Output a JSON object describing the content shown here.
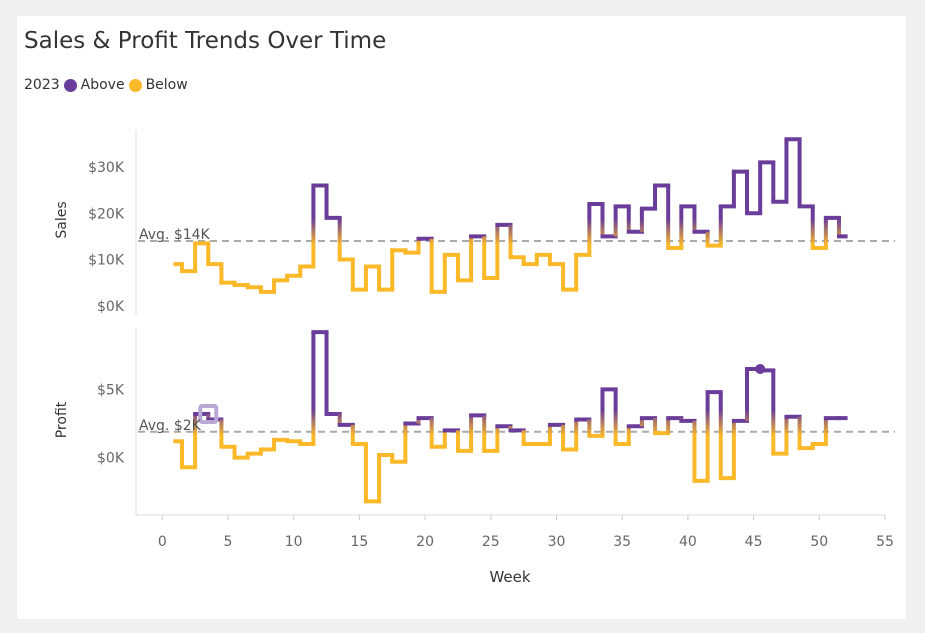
{
  "title": "Sales & Profit Trends Over Time",
  "legend": {
    "year": "2023",
    "items": [
      {
        "label": "Above",
        "color": "#6a3d9a"
      },
      {
        "label": "Below",
        "color": "#fbb829"
      }
    ]
  },
  "colors": {
    "above": "#6a3d9a",
    "below": "#fbb829",
    "avg_line": "#aaaaaa",
    "highlight": "#b9a7d6"
  },
  "chart_data": [
    {
      "type": "line",
      "style": "step",
      "ylabel": "Sales",
      "xlabel": "",
      "yticks": [
        0,
        10000,
        20000,
        30000
      ],
      "ytick_labels": [
        "$0K",
        "$10K",
        "$20K",
        "$30K"
      ],
      "ylim": [
        -2000,
        38000
      ],
      "avg": 14000,
      "avg_label": "Avg. $14K",
      "x": [
        1,
        2,
        3,
        4,
        5,
        6,
        7,
        8,
        9,
        10,
        11,
        12,
        13,
        14,
        15,
        16,
        17,
        18,
        19,
        20,
        21,
        22,
        23,
        24,
        25,
        26,
        27,
        28,
        29,
        30,
        31,
        32,
        33,
        34,
        35,
        36,
        37,
        38,
        39,
        40,
        41,
        42,
        43,
        44,
        45,
        46,
        47,
        48,
        49,
        50,
        51,
        52
      ],
      "values": [
        9000,
        7500,
        13500,
        9000,
        5000,
        4500,
        4000,
        3000,
        5500,
        6500,
        8500,
        26000,
        19000,
        10000,
        3500,
        8500,
        3500,
        12000,
        11500,
        14500,
        3000,
        11000,
        5500,
        15000,
        6000,
        17500,
        10500,
        9000,
        11000,
        9000,
        3500,
        11000,
        22000,
        15000,
        21500,
        16000,
        21000,
        26000,
        12500,
        21500,
        16000,
        13000,
        21500,
        29000,
        20000,
        31000,
        22500,
        36000,
        21500,
        12500,
        19000,
        15000
      ]
    },
    {
      "type": "line",
      "style": "step",
      "ylabel": "Profit",
      "xlabel": "Week",
      "yticks": [
        0,
        5000
      ],
      "ytick_labels": [
        "$0K",
        "$5K"
      ],
      "ylim": [
        -4200,
        9500
      ],
      "avg": 1900,
      "avg_label": "Avg. $2K",
      "x": [
        1,
        2,
        3,
        4,
        5,
        6,
        7,
        8,
        9,
        10,
        11,
        12,
        13,
        14,
        15,
        16,
        17,
        18,
        19,
        20,
        21,
        22,
        23,
        24,
        25,
        26,
        27,
        28,
        29,
        30,
        31,
        32,
        33,
        34,
        35,
        36,
        37,
        38,
        39,
        40,
        41,
        42,
        43,
        44,
        45,
        46,
        47,
        48,
        49,
        50,
        51,
        52
      ],
      "values": [
        1200,
        -700,
        3200,
        2800,
        800,
        0,
        300,
        600,
        1300,
        1200,
        1000,
        9200,
        3200,
        2400,
        1000,
        -3200,
        200,
        -300,
        2500,
        2900,
        800,
        2000,
        500,
        3100,
        500,
        2300,
        2000,
        1000,
        1000,
        2400,
        600,
        2800,
        1600,
        5000,
        1000,
        2300,
        2900,
        1800,
        2900,
        2700,
        -1700,
        4800,
        -1500,
        2700,
        6500,
        6400,
        300,
        3000,
        700,
        1000,
        2900,
        2900
      ],
      "highlight_marker_week": 3,
      "dot_marker_week": 45
    }
  ],
  "xaxis": {
    "ticks": [
      0,
      5,
      10,
      15,
      20,
      25,
      30,
      35,
      40,
      45,
      50,
      55
    ],
    "tick_labels": [
      "0",
      "5",
      "10",
      "15",
      "20",
      "25",
      "30",
      "35",
      "40",
      "45",
      "50",
      "55"
    ],
    "label": "Week",
    "range": [
      -2,
      55
    ]
  }
}
